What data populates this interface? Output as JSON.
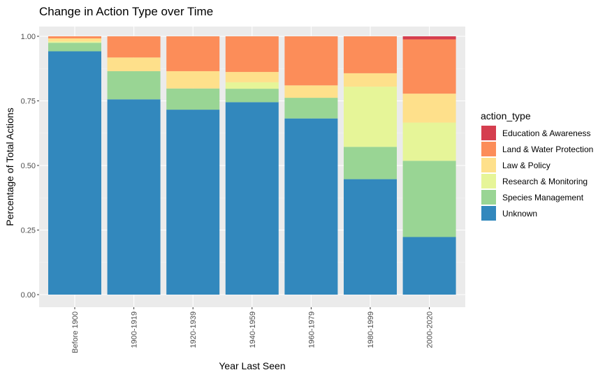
{
  "chart_data": {
    "type": "bar",
    "stacked": true,
    "title": "Change in Action Type over Time",
    "xlabel": "Year Last Seen",
    "ylabel": "Percentage of Total Actions",
    "ylim": [
      0,
      1
    ],
    "yticks": [
      "0.00",
      "0.25",
      "0.50",
      "0.75",
      "1.00"
    ],
    "ytick_values": [
      0,
      0.25,
      0.5,
      0.75,
      1.0
    ],
    "grid": true,
    "legend_title": "action_type",
    "legend_position": "right",
    "categories": [
      "Before 1900",
      "1900-1919",
      "1920-1939",
      "1940-1959",
      "1960-1979",
      "1980-1999",
      "2000-2020"
    ],
    "series": [
      {
        "name": "Education & Awareness",
        "color": "#D53E4F",
        "values": [
          0,
          0,
          0,
          0,
          0,
          0,
          0.012
        ]
      },
      {
        "name": "Land & Water Protection",
        "color": "#FC8D59",
        "values": [
          0.008,
          0.082,
          0.135,
          0.138,
          0.19,
          0.143,
          0.21
        ]
      },
      {
        "name": "Law & Policy",
        "color": "#FEE08B",
        "values": [
          0.012,
          0.053,
          0.067,
          0.04,
          0.048,
          0.052,
          0.112
        ]
      },
      {
        "name": "Research & Monitoring",
        "color": "#E6F598",
        "values": [
          0.005,
          0,
          0,
          0.025,
          0,
          0.233,
          0.148
        ]
      },
      {
        "name": "Species Management",
        "color": "#99D594",
        "values": [
          0.033,
          0.109,
          0.082,
          0.052,
          0.08,
          0.125,
          0.295
        ]
      },
      {
        "name": "Unknown",
        "color": "#3288BD",
        "values": [
          0.942,
          0.756,
          0.716,
          0.745,
          0.682,
          0.447,
          0.223
        ]
      }
    ],
    "stack_order_bottom_to_top": [
      "Unknown",
      "Species Management",
      "Research & Monitoring",
      "Law & Policy",
      "Land & Water Protection",
      "Education & Awareness"
    ]
  }
}
